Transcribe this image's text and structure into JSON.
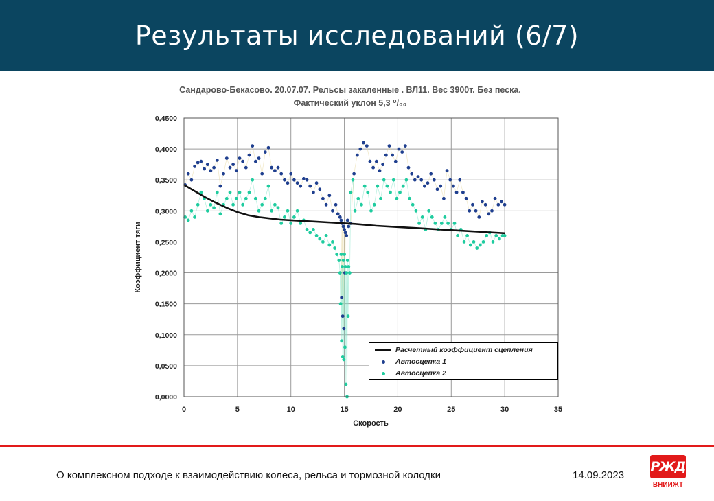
{
  "slide": {
    "title": "Результаты исследований (6/7)",
    "footer_text": "О комплексном подходе к взаимодействию колеса, рельса и тормозной колодки",
    "date": "14.09.2023",
    "logo_mark": "РЖД",
    "logo_text": "ВНИИЖТ"
  },
  "colors": {
    "header_bg": "#0b4560",
    "accent_red": "#e21a1a",
    "series1": "#1f3f8f",
    "series2": "#1fcc9f",
    "calc": "#111111"
  },
  "chart_data": {
    "type": "scatter",
    "title_line1": "Сандарово-Бекасово. 20.07.07. Рельсы закаленные . ВЛ11. Вес 3900т. Без песка.",
    "title_line2": "Фактический уклон 5,3 ⁰/₀₀",
    "xlabel": "Скорость",
    "ylabel": "Коэффициент тяги",
    "xlim": [
      0,
      35
    ],
    "ylim": [
      0,
      0.45
    ],
    "x_ticks": [
      0,
      5,
      10,
      15,
      20,
      25,
      30,
      35
    ],
    "x_tick_labels": [
      "0",
      "5",
      "10",
      "15",
      "20",
      "25",
      "30",
      "35"
    ],
    "y_ticks": [
      0,
      0.05,
      0.1,
      0.15,
      0.2,
      0.25,
      0.3,
      0.35,
      0.4,
      0.45
    ],
    "y_tick_labels": [
      "0,0000",
      "0,0500",
      "0,1000",
      "0,1500",
      "0,2000",
      "0,2500",
      "0,3000",
      "0,3500",
      "0,4000",
      "0,4500"
    ],
    "grid": true,
    "legend_position": "bottom-right",
    "legend": [
      "Расчетный коэффициент сцепления",
      "Автосцепка 1",
      "Автосцепка 2"
    ],
    "series": [
      {
        "name": "Расчетный коэффициент сцепления",
        "kind": "line",
        "x": [
          0,
          1,
          2,
          3,
          4,
          5,
          6,
          7,
          8,
          9,
          10,
          12,
          14,
          15,
          16,
          18,
          20,
          22,
          24,
          26,
          28,
          30
        ],
        "y": [
          0.342,
          0.332,
          0.322,
          0.313,
          0.305,
          0.298,
          0.293,
          0.29,
          0.288,
          0.286,
          0.285,
          0.283,
          0.281,
          0.28,
          0.279,
          0.276,
          0.274,
          0.272,
          0.27,
          0.268,
          0.266,
          0.264
        ]
      },
      {
        "name": "Автосцепка 1",
        "kind": "scatter",
        "x": [
          0.1,
          0.4,
          0.7,
          1.0,
          1.3,
          1.6,
          1.9,
          2.2,
          2.5,
          2.8,
          3.1,
          3.4,
          3.7,
          4.0,
          4.3,
          4.6,
          4.9,
          5.2,
          5.5,
          5.8,
          6.1,
          6.4,
          6.7,
          7.0,
          7.3,
          7.6,
          7.9,
          8.2,
          8.5,
          8.8,
          9.1,
          9.4,
          9.7,
          10.0,
          10.3,
          10.6,
          10.9,
          11.2,
          11.5,
          11.8,
          12.1,
          12.4,
          12.7,
          13.0,
          13.3,
          13.6,
          13.9,
          14.2,
          14.4,
          14.6,
          14.7,
          14.8,
          14.9,
          15.0,
          15.1,
          15.2,
          15.3,
          15.4,
          15.6,
          15.9,
          16.2,
          16.5,
          16.8,
          17.1,
          17.4,
          17.7,
          18.0,
          18.3,
          18.6,
          18.9,
          19.2,
          19.5,
          19.8,
          20.1,
          20.4,
          20.7,
          21.0,
          21.3,
          21.6,
          21.9,
          22.2,
          22.5,
          22.8,
          23.1,
          23.4,
          23.7,
          24.0,
          24.3,
          24.6,
          24.9,
          25.2,
          25.5,
          25.8,
          26.1,
          26.4,
          26.7,
          27.0,
          27.3,
          27.6,
          27.9,
          28.2,
          28.5,
          28.8,
          29.1,
          29.4,
          29.7,
          30.0,
          14.75,
          14.85,
          14.95,
          15.05
        ],
        "y": [
          0.342,
          0.36,
          0.35,
          0.372,
          0.378,
          0.38,
          0.368,
          0.375,
          0.365,
          0.37,
          0.382,
          0.34,
          0.36,
          0.385,
          0.37,
          0.375,
          0.365,
          0.385,
          0.38,
          0.37,
          0.39,
          0.405,
          0.38,
          0.385,
          0.36,
          0.395,
          0.402,
          0.37,
          0.365,
          0.37,
          0.36,
          0.35,
          0.345,
          0.36,
          0.35,
          0.345,
          0.34,
          0.352,
          0.35,
          0.34,
          0.33,
          0.345,
          0.335,
          0.32,
          0.31,
          0.325,
          0.3,
          0.31,
          0.295,
          0.29,
          0.285,
          0.28,
          0.275,
          0.27,
          0.265,
          0.26,
          0.285,
          0.275,
          0.28,
          0.36,
          0.39,
          0.4,
          0.41,
          0.405,
          0.38,
          0.37,
          0.38,
          0.365,
          0.375,
          0.39,
          0.405,
          0.39,
          0.38,
          0.4,
          0.395,
          0.405,
          0.37,
          0.36,
          0.35,
          0.355,
          0.35,
          0.34,
          0.345,
          0.36,
          0.35,
          0.335,
          0.34,
          0.32,
          0.365,
          0.35,
          0.34,
          0.33,
          0.35,
          0.33,
          0.32,
          0.3,
          0.31,
          0.3,
          0.29,
          0.315,
          0.31,
          0.295,
          0.3,
          0.32,
          0.31,
          0.315,
          0.31,
          0.16,
          0.13,
          0.11,
          0.2
        ]
      },
      {
        "name": "Автосцепка 2",
        "kind": "scatter",
        "x": [
          0.1,
          0.4,
          0.7,
          1.0,
          1.3,
          1.6,
          1.9,
          2.2,
          2.5,
          2.8,
          3.1,
          3.4,
          3.7,
          4.0,
          4.3,
          4.6,
          4.9,
          5.2,
          5.5,
          5.8,
          6.1,
          6.4,
          6.7,
          7.0,
          7.3,
          7.6,
          7.9,
          8.2,
          8.5,
          8.8,
          9.1,
          9.4,
          9.7,
          10.0,
          10.3,
          10.6,
          10.9,
          11.2,
          11.5,
          11.8,
          12.1,
          12.4,
          12.7,
          13.0,
          13.3,
          13.6,
          13.9,
          14.1,
          14.3,
          14.5,
          14.6,
          14.7,
          14.8,
          14.9,
          15.0,
          15.1,
          15.2,
          15.3,
          15.4,
          15.5,
          15.6,
          15.8,
          16.0,
          16.3,
          16.6,
          16.9,
          17.2,
          17.5,
          17.8,
          18.1,
          18.4,
          18.7,
          19.0,
          19.3,
          19.6,
          19.9,
          20.2,
          20.5,
          20.8,
          21.1,
          21.4,
          21.7,
          22.0,
          22.3,
          22.6,
          22.9,
          23.2,
          23.5,
          23.8,
          24.1,
          24.4,
          24.7,
          25.0,
          25.3,
          25.6,
          25.9,
          26.2,
          26.5,
          26.8,
          27.1,
          27.4,
          27.7,
          28.0,
          28.3,
          28.6,
          28.9,
          29.2,
          29.5,
          29.8,
          30.0,
          14.65,
          14.75,
          14.85,
          14.95,
          15.05,
          15.15,
          15.25,
          15.35
        ],
        "y": [
          0.29,
          0.285,
          0.3,
          0.29,
          0.31,
          0.33,
          0.32,
          0.3,
          0.31,
          0.305,
          0.33,
          0.295,
          0.31,
          0.32,
          0.33,
          0.31,
          0.32,
          0.33,
          0.31,
          0.32,
          0.33,
          0.35,
          0.32,
          0.3,
          0.31,
          0.32,
          0.34,
          0.3,
          0.31,
          0.305,
          0.28,
          0.29,
          0.3,
          0.28,
          0.29,
          0.3,
          0.28,
          0.285,
          0.27,
          0.265,
          0.27,
          0.26,
          0.255,
          0.25,
          0.26,
          0.245,
          0.25,
          0.24,
          0.23,
          0.22,
          0.2,
          0.23,
          0.21,
          0.22,
          0.23,
          0.21,
          0.2,
          0.22,
          0.21,
          0.2,
          0.33,
          0.35,
          0.3,
          0.32,
          0.31,
          0.34,
          0.33,
          0.3,
          0.31,
          0.34,
          0.32,
          0.35,
          0.34,
          0.33,
          0.35,
          0.32,
          0.33,
          0.34,
          0.35,
          0.32,
          0.31,
          0.3,
          0.28,
          0.29,
          0.27,
          0.3,
          0.29,
          0.28,
          0.27,
          0.28,
          0.29,
          0.28,
          0.27,
          0.28,
          0.26,
          0.27,
          0.25,
          0.26,
          0.245,
          0.25,
          0.24,
          0.245,
          0.25,
          0.26,
          0.265,
          0.25,
          0.26,
          0.255,
          0.26,
          0.26,
          0.15,
          0.09,
          0.065,
          0.06,
          0.08,
          0.02,
          0.0,
          0.13
        ]
      }
    ]
  }
}
